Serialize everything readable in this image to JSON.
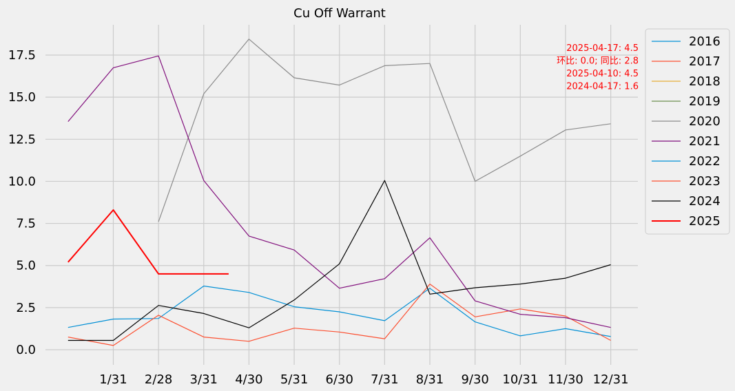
{
  "chart_data": {
    "type": "line",
    "title": "Cu Off Warrant",
    "xlabel": "",
    "ylabel": "",
    "x_tick_labels": [
      "1/31",
      "2/28",
      "3/31",
      "4/30",
      "5/31",
      "6/30",
      "7/31",
      "8/31",
      "9/30",
      "10/31",
      "11/30",
      "12/31"
    ],
    "y_tick_labels": [
      "0.0",
      "2.5",
      "5.0",
      "7.5",
      "10.0",
      "12.5",
      "15.0",
      "17.5"
    ],
    "y_ticks": [
      0,
      2.5,
      5,
      7.5,
      10,
      12.5,
      15,
      17.5
    ],
    "xlim": [
      -0.5,
      12.6
    ],
    "ylim": [
      -0.9,
      19.3
    ],
    "grid": true,
    "legend_position": "outside-right",
    "series": [
      {
        "name": "2016",
        "color": "#008fd5",
        "width": 1.2,
        "points": [
          [
            0,
            1.32
          ],
          [
            1,
            1.82
          ],
          [
            2,
            1.85
          ],
          [
            3,
            3.78
          ],
          [
            4,
            3.4
          ],
          [
            5,
            2.55
          ],
          [
            6,
            2.25
          ],
          [
            7,
            1.72
          ],
          [
            8,
            3.65
          ],
          [
            9,
            1.65
          ],
          [
            10,
            0.82
          ],
          [
            11,
            1.25
          ],
          [
            12,
            0.78
          ]
        ]
      },
      {
        "name": "2017",
        "color": "#fc4f30",
        "width": 1.2,
        "points": [
          [
            0,
            0.75
          ],
          [
            1,
            0.25
          ],
          [
            2,
            2.05
          ],
          [
            3,
            0.75
          ],
          [
            4,
            0.5
          ],
          [
            5,
            1.28
          ],
          [
            6,
            1.05
          ],
          [
            7,
            0.65
          ],
          [
            8,
            3.9
          ],
          [
            9,
            1.95
          ],
          [
            10,
            2.42
          ],
          [
            11,
            2.0
          ],
          [
            12,
            0.55
          ]
        ]
      },
      {
        "name": "2018",
        "color": "#e5ae38",
        "width": 1.2,
        "points": []
      },
      {
        "name": "2019",
        "color": "#6d904f",
        "width": 1.2,
        "points": []
      },
      {
        "name": "2020",
        "color": "#8b8b8b",
        "width": 1.2,
        "points": [
          [
            2,
            7.6
          ],
          [
            3,
            15.2
          ],
          [
            4,
            18.45
          ],
          [
            5,
            16.15
          ],
          [
            6,
            15.72
          ],
          [
            7,
            16.87
          ],
          [
            8,
            17.0
          ],
          [
            9,
            10.0
          ],
          [
            10,
            11.5
          ],
          [
            11,
            13.05
          ],
          [
            12,
            13.42
          ]
        ]
      },
      {
        "name": "2021",
        "color": "#810f7c",
        "width": 1.2,
        "points": [
          [
            0,
            13.55
          ],
          [
            1,
            16.75
          ],
          [
            2,
            17.45
          ],
          [
            3,
            10.05
          ],
          [
            4,
            6.75
          ],
          [
            5,
            5.92
          ],
          [
            6,
            3.65
          ],
          [
            7,
            4.22
          ],
          [
            8,
            6.65
          ],
          [
            9,
            2.9
          ],
          [
            10,
            2.1
          ],
          [
            11,
            1.9
          ],
          [
            12,
            1.32
          ]
        ]
      },
      {
        "name": "2022",
        "color": "#008fd5",
        "width": 1.2,
        "points": []
      },
      {
        "name": "2023",
        "color": "#fc4f30",
        "width": 1.2,
        "points": []
      },
      {
        "name": "2024",
        "color": "#000000",
        "width": 1.2,
        "points": [
          [
            0,
            0.55
          ],
          [
            1,
            0.55
          ],
          [
            2,
            2.63
          ],
          [
            3,
            2.15
          ],
          [
            4,
            1.3
          ],
          [
            5,
            2.95
          ],
          [
            6,
            5.1
          ],
          [
            7,
            10.05
          ],
          [
            8,
            3.3
          ],
          [
            9,
            3.68
          ],
          [
            10,
            3.9
          ],
          [
            11,
            4.25
          ],
          [
            12,
            5.05
          ]
        ]
      },
      {
        "name": "2025",
        "color": "#ff0000",
        "width": 2,
        "points": [
          [
            0,
            5.2
          ],
          [
            1,
            8.3
          ],
          [
            2,
            4.5
          ],
          [
            2.5,
            4.5
          ],
          [
            3,
            4.5
          ],
          [
            3.55,
            4.5
          ]
        ]
      }
    ],
    "annotations": [
      "2025-04-17: 4.5",
      "环比: 0.0; 同比: 2.8",
      "2025-04-10: 4.5",
      "2024-04-17: 1.6"
    ],
    "annotation_color": "#ff0000"
  }
}
